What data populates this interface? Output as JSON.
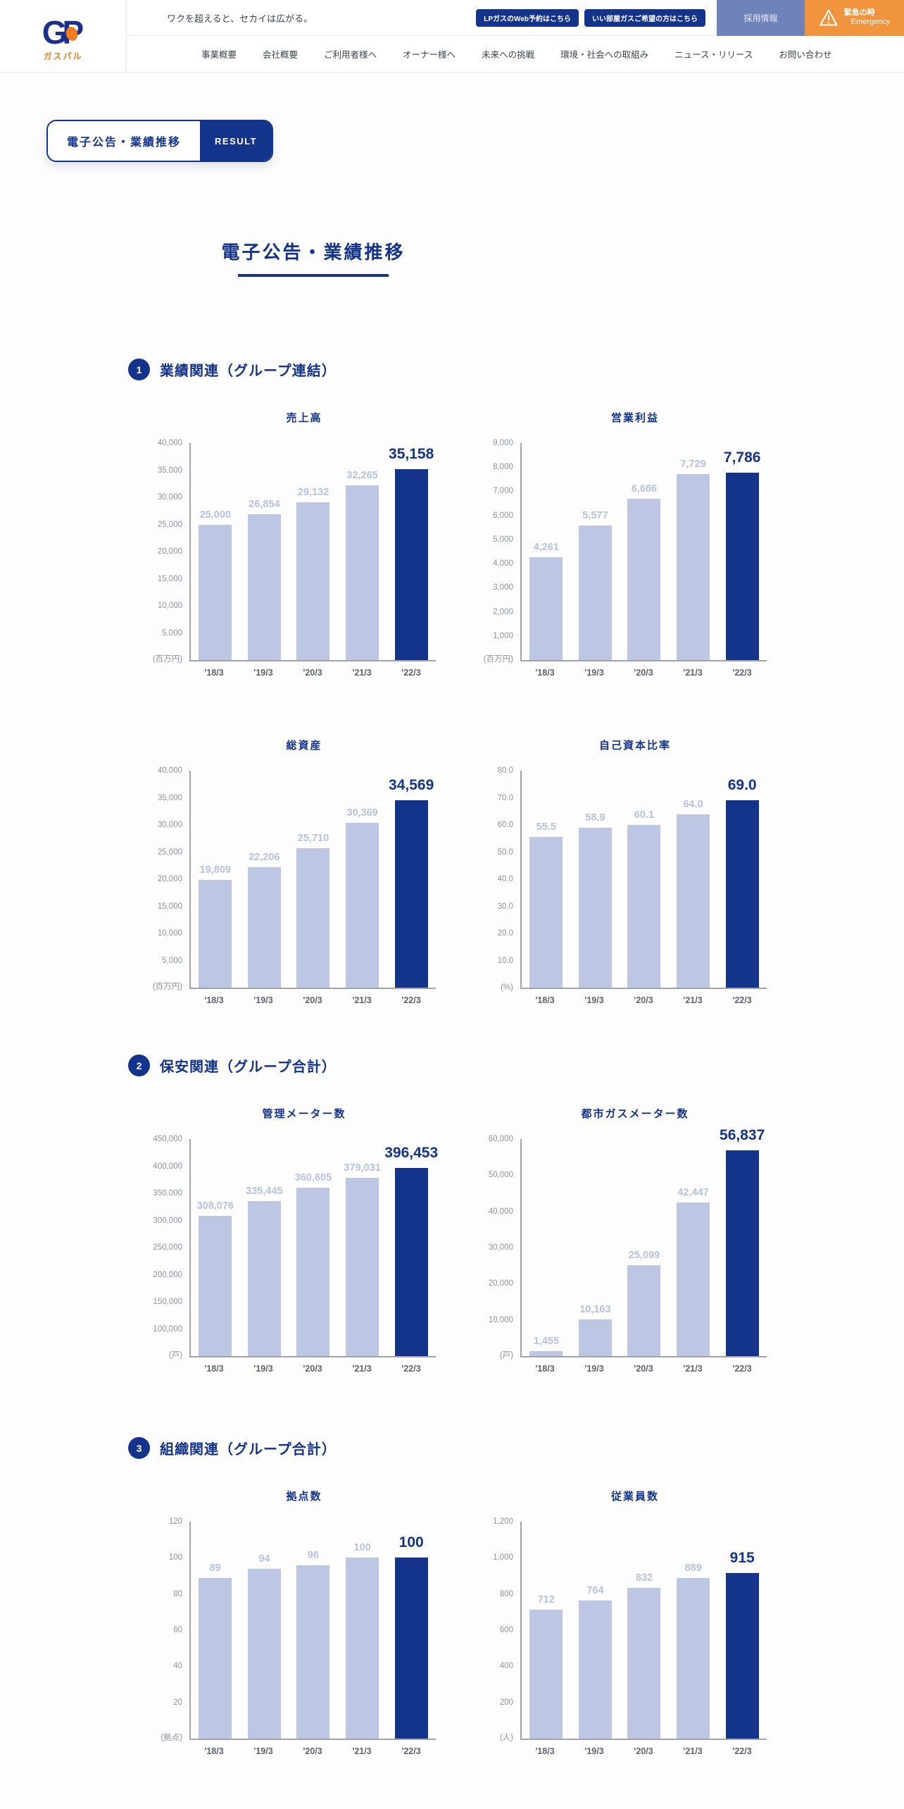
{
  "header": {
    "logo": {
      "mark": "GP",
      "name": "ガスパル"
    },
    "tagline": "ワクを超えると、セカイは広がる。",
    "quick_links": [
      {
        "label": "LPガスのWeb予約はこちら"
      },
      {
        "label": "いい部屋ガスご希望の方はこちら"
      }
    ],
    "recruit_label": "採用情報",
    "emergency": {
      "line1": "緊急の時",
      "line2": "Emergency"
    },
    "nav": [
      {
        "label": "事業概要"
      },
      {
        "label": "会社概要"
      },
      {
        "label": "ご利用者様へ"
      },
      {
        "label": "オーナー様へ"
      },
      {
        "label": "未来への挑戦"
      },
      {
        "label": "環境・社会への取組み"
      },
      {
        "label": "ニュース・リリース"
      },
      {
        "label": "お問い合わせ"
      }
    ]
  },
  "page_badge": {
    "title": "電子公告・業績推移",
    "tag": "RESULT"
  },
  "page_title": "電子公告・業績推移",
  "sections": [
    {
      "number": "1",
      "title": "業績関連（グループ連結）"
    },
    {
      "number": "2",
      "title": "保安関連（グループ合計）"
    },
    {
      "number": "3",
      "title": "組織関連（グループ合計）"
    }
  ],
  "colors": {
    "primary_navy": "#14338b",
    "bar_light": "#bdc7e3",
    "accent_orange": "#f0943e",
    "recruit_blue": "#6d83ba",
    "logo_orange": "#f07c1e"
  },
  "chart_data": [
    {
      "type": "bar",
      "key": "sales",
      "grid": "0",
      "title": "売上高",
      "unit": "(百万円)",
      "categories": [
        "'18/3",
        "'19/3",
        "'20/3",
        "'21/3",
        "'22/3"
      ],
      "values": [
        25000,
        26854,
        29132,
        32265,
        35158
      ],
      "value_labels": [
        "25,000",
        "26,854",
        "29,132",
        "32,265",
        "35,158"
      ],
      "ylim": [
        0,
        40000
      ],
      "yticks": [
        5000,
        10000,
        15000,
        20000,
        25000,
        30000,
        35000,
        40000
      ],
      "ytick_labels": [
        "5,000",
        "10,000",
        "15,000",
        "20,000",
        "25,000",
        "30,000",
        "35,000",
        "40,000"
      ],
      "highlight_last": true,
      "legend": "none",
      "grid_lines": false
    },
    {
      "type": "bar",
      "key": "operating-profit",
      "grid": "0",
      "title": "営業利益",
      "unit": "(百万円)",
      "categories": [
        "'18/3",
        "'19/3",
        "'20/3",
        "'21/3",
        "'22/3"
      ],
      "values": [
        4261,
        5577,
        6686,
        7729,
        7786
      ],
      "value_labels": [
        "4,261",
        "5,577",
        "6,686",
        "7,729",
        "7,786"
      ],
      "ylim": [
        0,
        9000
      ],
      "yticks": [
        1000,
        2000,
        3000,
        4000,
        5000,
        6000,
        7000,
        8000,
        9000
      ],
      "ytick_labels": [
        "1,000",
        "2,000",
        "3,000",
        "4,000",
        "5,000",
        "6,000",
        "7,000",
        "8,000",
        "9,000"
      ],
      "highlight_last": true,
      "legend": "none",
      "grid_lines": false
    },
    {
      "type": "bar",
      "key": "total-assets",
      "grid": "1",
      "title": "総資産",
      "unit": "(百万円)",
      "categories": [
        "'18/3",
        "'19/3",
        "'20/3",
        "'21/3",
        "'22/3"
      ],
      "values": [
        19809,
        22206,
        25710,
        30369,
        34569
      ],
      "value_labels": [
        "19,809",
        "22,206",
        "25,710",
        "30,369",
        "34,569"
      ],
      "ylim": [
        0,
        40000
      ],
      "yticks": [
        5000,
        10000,
        15000,
        20000,
        25000,
        30000,
        35000,
        40000
      ],
      "ytick_labels": [
        "5,000",
        "10,000",
        "15,000",
        "20,000",
        "25,000",
        "30,000",
        "35,000",
        "40,000"
      ],
      "highlight_last": true,
      "legend": "none",
      "grid_lines": false
    },
    {
      "type": "bar",
      "key": "equity-ratio",
      "grid": "1",
      "title": "自己資本比率",
      "unit": "(%)",
      "categories": [
        "'18/3",
        "'19/3",
        "'20/3",
        "'21/3",
        "'22/3"
      ],
      "values": [
        55.5,
        58.9,
        60.1,
        64.0,
        69.0
      ],
      "value_labels": [
        "55.5",
        "58.9",
        "60.1",
        "64.0",
        "69.0"
      ],
      "ylim": [
        0,
        80
      ],
      "yticks": [
        10,
        20,
        30,
        40,
        50,
        60,
        70,
        80
      ],
      "ytick_labels": [
        "10.0",
        "20.0",
        "30.0",
        "40.0",
        "50.0",
        "60.0",
        "70.0",
        "80.0"
      ],
      "highlight_last": true,
      "legend": "none",
      "grid_lines": false
    },
    {
      "type": "bar",
      "key": "managed-meters",
      "grid": "2",
      "title": "管理メーター数",
      "unit": "(戸)",
      "categories": [
        "'18/3",
        "'19/3",
        "'20/3",
        "'21/3",
        "'22/3"
      ],
      "values": [
        308076,
        335445,
        360605,
        379031,
        396453
      ],
      "value_labels": [
        "308,076",
        "335,445",
        "360,605",
        "379,031",
        "396,453"
      ],
      "ylim": [
        50000,
        450000
      ],
      "yticks": [
        100000,
        150000,
        200000,
        250000,
        300000,
        350000,
        400000,
        450000
      ],
      "ytick_labels": [
        "100,000",
        "150,000",
        "200,000",
        "250,000",
        "300,000",
        "350,000",
        "400,000",
        "450,000"
      ],
      "highlight_last": true,
      "legend": "none",
      "grid_lines": false
    },
    {
      "type": "bar",
      "key": "city-gas-meters",
      "grid": "2",
      "title": "都市ガスメーター数",
      "unit": "(戸)",
      "categories": [
        "'18/3",
        "'19/3",
        "'20/3",
        "'21/3",
        "'22/3"
      ],
      "values": [
        1455,
        10163,
        25099,
        42447,
        56837
      ],
      "value_labels": [
        "1,455",
        "10,163",
        "25,099",
        "42,447",
        "56,837"
      ],
      "ylim": [
        0,
        60000
      ],
      "yticks": [
        10000,
        20000,
        30000,
        40000,
        50000,
        60000
      ],
      "ytick_labels": [
        "10,000",
        "20,000",
        "30,000",
        "40,000",
        "50,000",
        "60,000"
      ],
      "highlight_last": true,
      "legend": "none",
      "grid_lines": false
    },
    {
      "type": "bar",
      "key": "offices",
      "grid": "3",
      "title": "拠点数",
      "unit": "(拠点)",
      "categories": [
        "'18/3",
        "'19/3",
        "'20/3",
        "'21/3",
        "'22/3"
      ],
      "values": [
        89,
        94,
        96,
        100,
        100
      ],
      "value_labels": [
        "89",
        "94",
        "96",
        "100",
        "100"
      ],
      "ylim": [
        0,
        120
      ],
      "yticks": [
        20,
        40,
        60,
        80,
        100,
        120
      ],
      "ytick_labels": [
        "20",
        "40",
        "60",
        "80",
        "100",
        "120"
      ],
      "highlight_last": true,
      "legend": "none",
      "grid_lines": false
    },
    {
      "type": "bar",
      "key": "employees",
      "grid": "3",
      "title": "従業員数",
      "unit": "(人)",
      "categories": [
        "'18/3",
        "'19/3",
        "'20/3",
        "'21/3",
        "'22/3"
      ],
      "values": [
        712,
        764,
        832,
        889,
        915
      ],
      "value_labels": [
        "712",
        "764",
        "832",
        "889",
        "915"
      ],
      "ylim": [
        0,
        1200
      ],
      "yticks": [
        200,
        400,
        600,
        800,
        1000,
        1200
      ],
      "ytick_labels": [
        "200",
        "400",
        "600",
        "800",
        "1,000",
        "1,200"
      ],
      "highlight_last": true,
      "legend": "none",
      "grid_lines": false
    }
  ]
}
